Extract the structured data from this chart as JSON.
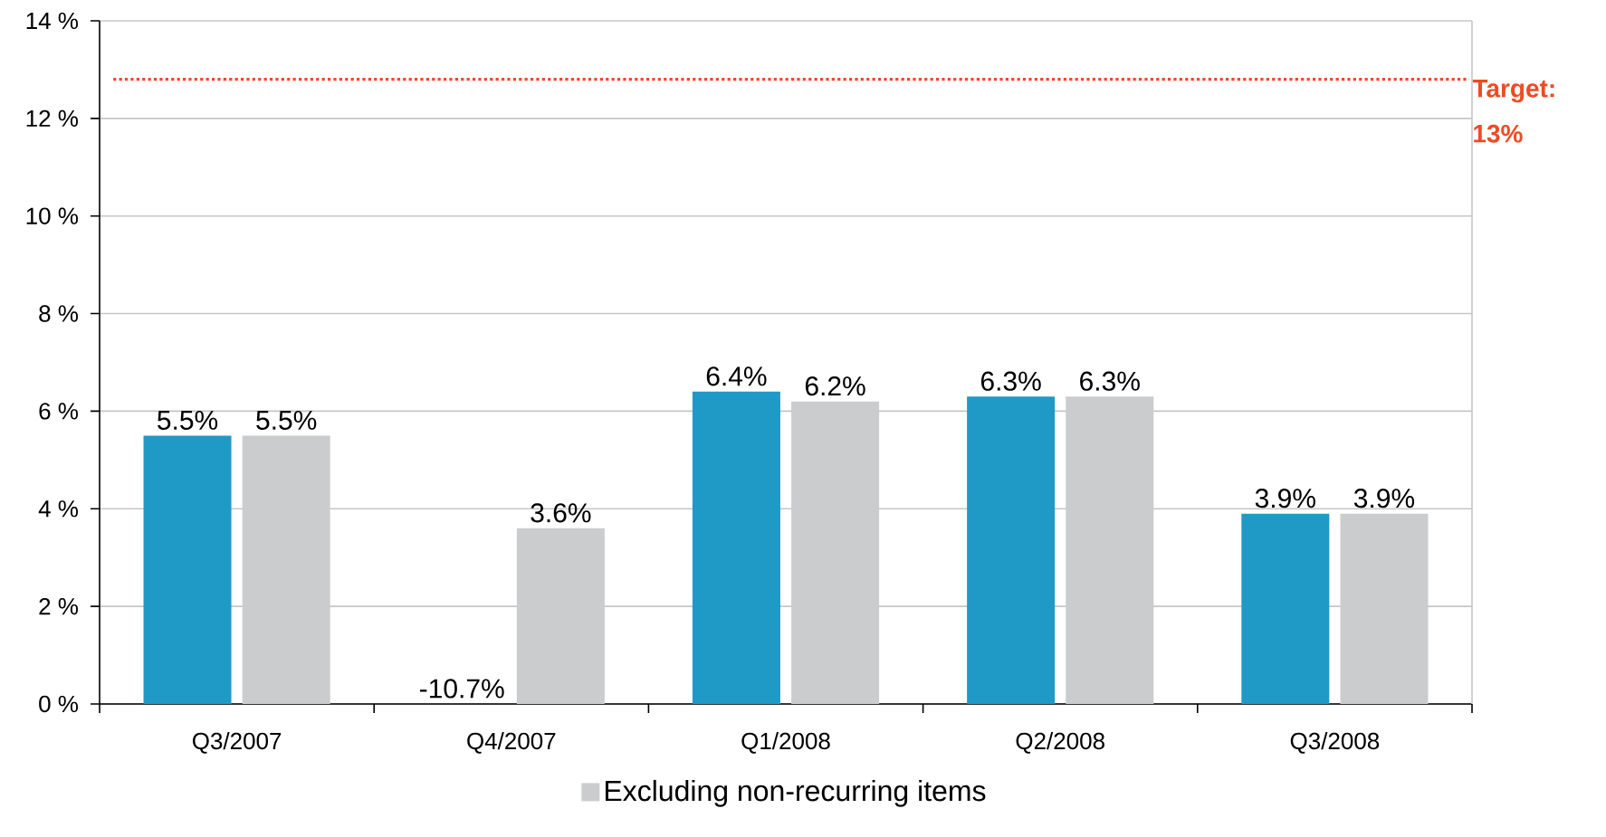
{
  "chart_data": {
    "type": "bar",
    "categories": [
      "Q3/2007",
      "Q4/2007",
      "Q1/2008",
      "Q2/2008",
      "Q3/2008"
    ],
    "series": [
      {
        "color": "#1f9ac6",
        "values": [
          5.5,
          null,
          6.4,
          6.3,
          3.9
        ],
        "value_labels": [
          "5.5%",
          "-10.7%",
          "6.4%",
          "6.3%",
          "3.9%"
        ]
      },
      {
        "name": "Excluding non-recurring items",
        "color": "#cbcccd",
        "values": [
          5.5,
          3.6,
          6.2,
          6.3,
          3.9
        ],
        "value_labels": [
          "5.5%",
          "3.6%",
          "6.2%",
          "6.3%",
          "3.9%"
        ]
      }
    ],
    "ylim": [
      0,
      14
    ],
    "yticks": [
      {
        "value": 0,
        "label": "0 %"
      },
      {
        "value": 2,
        "label": "2 %"
      },
      {
        "value": 4,
        "label": "4 %"
      },
      {
        "value": 6,
        "label": "6 %"
      },
      {
        "value": 8,
        "label": "8 %"
      },
      {
        "value": 10,
        "label": "10 %"
      },
      {
        "value": 12,
        "label": "12 %"
      },
      {
        "value": 14,
        "label": "14 %"
      }
    ],
    "ref_lines": [
      {
        "axis": "y",
        "value": 12.8,
        "label": "Target: 13%",
        "color": "#f04a24",
        "line_style": "dotted"
      }
    ],
    "grid": "y",
    "legend": "bottom"
  }
}
